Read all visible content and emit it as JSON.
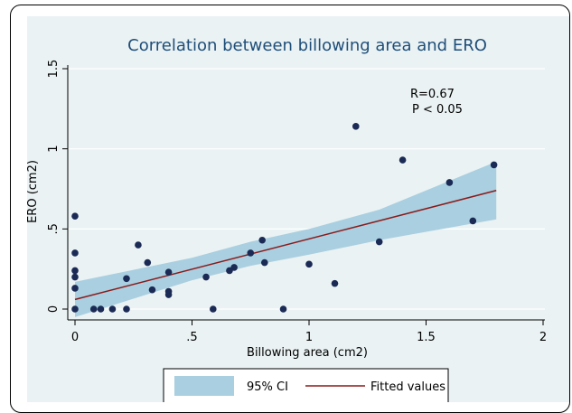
{
  "chart_data": {
    "type": "scatter",
    "title": "Correlation between billowing area and ERO",
    "xlabel": "Billowing area (cm2)",
    "ylabel": "ERO  (cm2)",
    "xlim": [
      0,
      2
    ],
    "ylim": [
      0,
      1.5
    ],
    "x_ticks": [
      0,
      0.5,
      1,
      1.5,
      2
    ],
    "x_tick_labels": [
      "0",
      ".5",
      "1",
      "1.5",
      "2"
    ],
    "y_ticks": [
      0,
      0.5,
      1,
      1.5
    ],
    "y_tick_labels": [
      "0",
      ".5",
      "1",
      "1.5"
    ],
    "grid": "horizontal",
    "legend_position": "bottom",
    "annotations": [
      "R=0.67",
      "P < 0.05"
    ],
    "series": [
      {
        "kind": "scatter",
        "points": [
          [
            0.0,
            0.58
          ],
          [
            0.0,
            0.35
          ],
          [
            0.0,
            0.24
          ],
          [
            0.0,
            0.2
          ],
          [
            0.0,
            0.13
          ],
          [
            0.0,
            0.0
          ],
          [
            0.08,
            0.0
          ],
          [
            0.11,
            0.0
          ],
          [
            0.16,
            0.0
          ],
          [
            0.22,
            0.0
          ],
          [
            0.22,
            0.19
          ],
          [
            0.27,
            0.4
          ],
          [
            0.31,
            0.29
          ],
          [
            0.33,
            0.12
          ],
          [
            0.4,
            0.23
          ],
          [
            0.4,
            0.11
          ],
          [
            0.4,
            0.09
          ],
          [
            0.56,
            0.2
          ],
          [
            0.59,
            0.0
          ],
          [
            0.66,
            0.24
          ],
          [
            0.68,
            0.26
          ],
          [
            0.75,
            0.35
          ],
          [
            0.8,
            0.43
          ],
          [
            0.81,
            0.29
          ],
          [
            0.89,
            0.0
          ],
          [
            1.0,
            0.28
          ],
          [
            1.11,
            0.16
          ],
          [
            1.2,
            1.14
          ],
          [
            1.3,
            0.42
          ],
          [
            1.4,
            0.93
          ],
          [
            1.6,
            0.79
          ],
          [
            1.7,
            0.55
          ],
          [
            1.79,
            0.9
          ]
        ]
      },
      {
        "name": "Fitted values",
        "kind": "line",
        "x": [
          0.0,
          1.8
        ],
        "y": [
          0.06,
          0.74
        ]
      },
      {
        "name": "95% CI",
        "kind": "band",
        "x": [
          0.0,
          0.5,
          0.75,
          1.0,
          1.3,
          1.8
        ],
        "lower": [
          -0.05,
          0.18,
          0.27,
          0.34,
          0.43,
          0.56
        ],
        "upper": [
          0.17,
          0.32,
          0.42,
          0.5,
          0.62,
          0.92
        ]
      }
    ],
    "colors": {
      "plot_background": "#eaf2f3",
      "ci_band": "#a9cfe0",
      "fit_line": "#8b1a1a",
      "points": "#1a2a55",
      "title": "#1f4e79",
      "grid": "#ffffff"
    }
  }
}
